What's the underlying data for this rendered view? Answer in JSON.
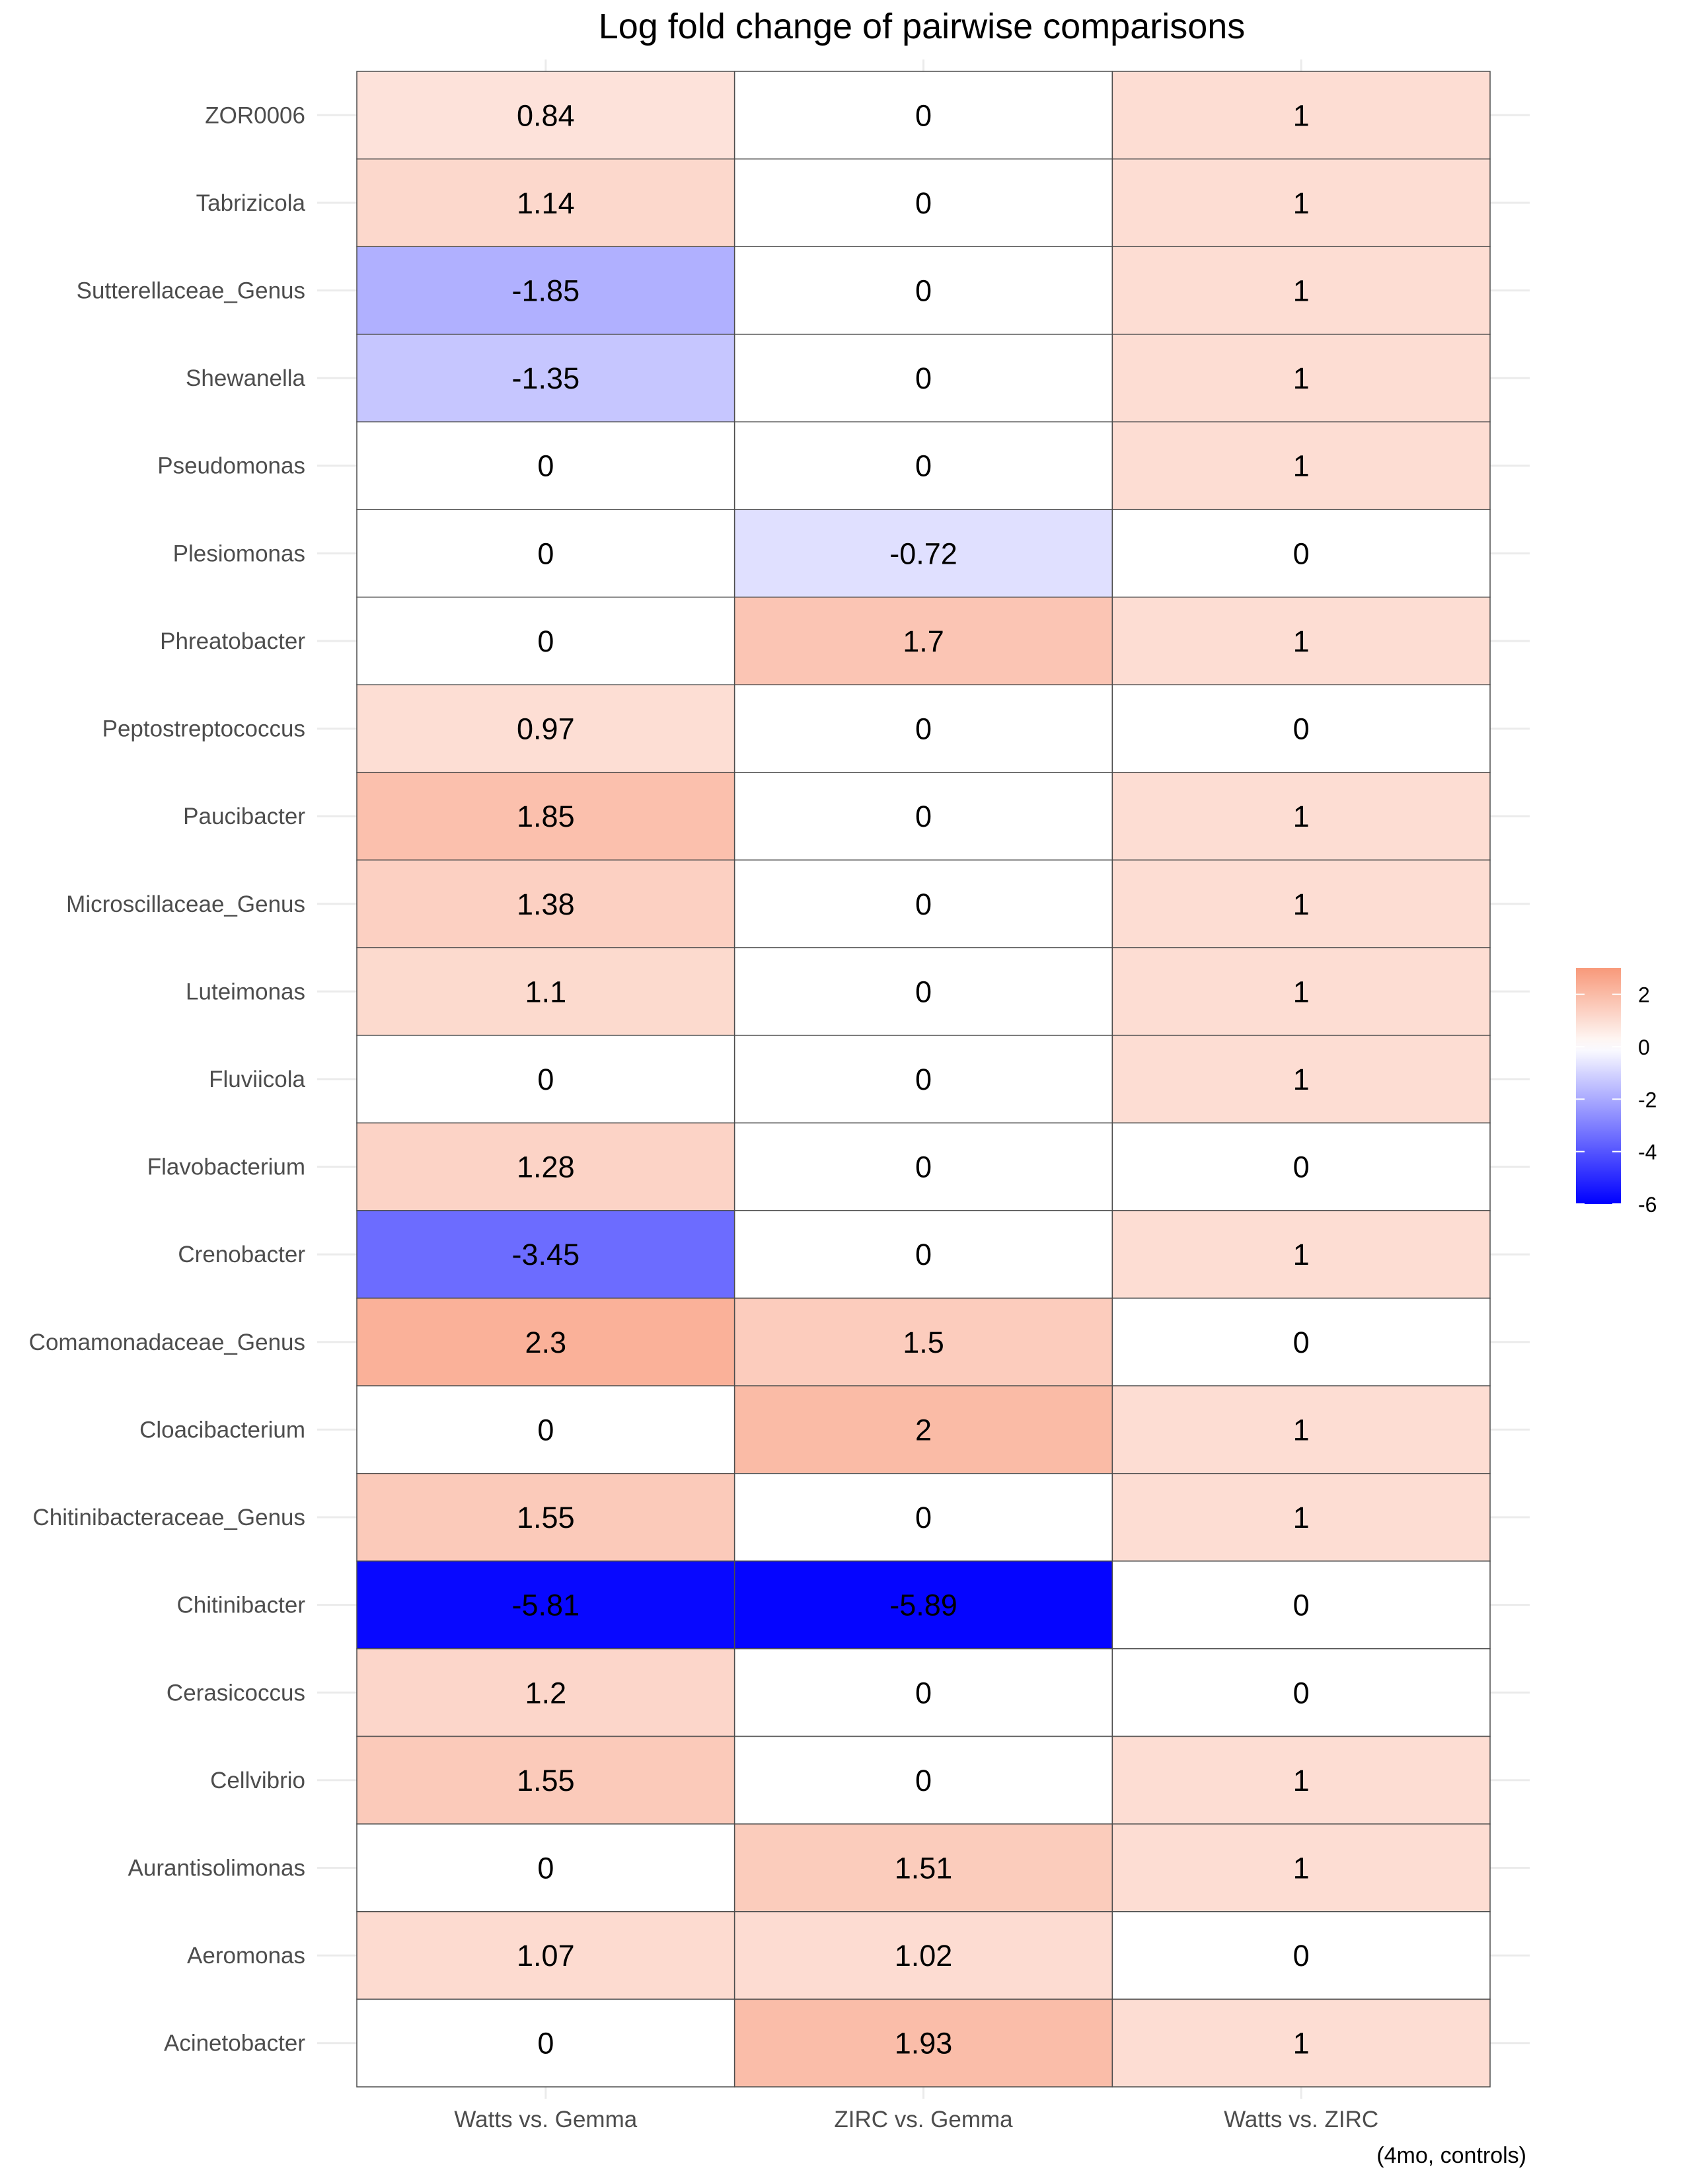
{
  "chart_data": {
    "type": "heatmap",
    "title": "Log fold change of pairwise comparisons",
    "caption": "(4mo, controls)",
    "x_categories": [
      "Watts vs. Gemma",
      "ZIRC vs. Gemma",
      "Watts vs. ZIRC"
    ],
    "y_categories": [
      "ZOR0006",
      "Tabrizicola",
      "Sutterellaceae_Genus",
      "Shewanella",
      "Pseudomonas",
      "Plesiomonas",
      "Phreatobacter",
      "Peptostreptococcus",
      "Paucibacter",
      "Microscillaceae_Genus",
      "Luteimonas",
      "Fluviicola",
      "Flavobacterium",
      "Crenobacter",
      "Comamonadaceae_Genus",
      "Cloacibacterium",
      "Chitinibacteraceae_Genus",
      "Chitinibacter",
      "Cerasicoccus",
      "Cellvibrio",
      "Aurantisolimonas",
      "Aeromonas",
      "Acinetobacter"
    ],
    "values": [
      [
        0.84,
        0,
        1
      ],
      [
        1.14,
        0,
        1
      ],
      [
        -1.85,
        0,
        1
      ],
      [
        -1.35,
        0,
        1
      ],
      [
        0,
        0,
        1
      ],
      [
        0,
        -0.72,
        0
      ],
      [
        0,
        1.7,
        1
      ],
      [
        0.97,
        0,
        0
      ],
      [
        1.85,
        0,
        1
      ],
      [
        1.38,
        0,
        1
      ],
      [
        1.1,
        0,
        1
      ],
      [
        0,
        0,
        1
      ],
      [
        1.28,
        0,
        0
      ],
      [
        -3.45,
        0,
        1
      ],
      [
        2.3,
        1.5,
        0
      ],
      [
        0,
        2,
        1
      ],
      [
        1.55,
        0,
        1
      ],
      [
        -5.81,
        -5.89,
        0
      ],
      [
        1.2,
        0,
        0
      ],
      [
        1.55,
        0,
        1
      ],
      [
        0,
        1.51,
        1
      ],
      [
        1.07,
        1.02,
        0
      ],
      [
        0,
        1.93,
        1
      ]
    ],
    "color_scale": {
      "low_color": "#0000ff",
      "mid_color": "#ffffff",
      "high_color": "#f8997a",
      "min": -6,
      "mid": 0,
      "max": 3
    },
    "legend": {
      "ticks": [
        2,
        0,
        -2,
        -4,
        -6
      ],
      "tick_labels": [
        "2",
        "0",
        "-2",
        "-4",
        "-6"
      ],
      "position": "right"
    },
    "grid": true,
    "colors": {
      "grid": "#ebebeb",
      "tile_border": "#4d4d4d",
      "axis_text": "#4d4d4d",
      "text": "#000000"
    }
  }
}
